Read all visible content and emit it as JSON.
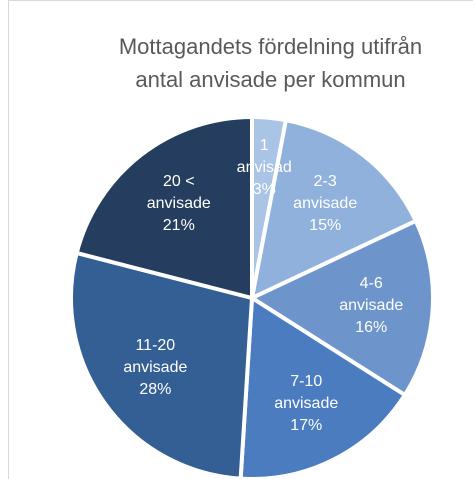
{
  "chart_data": {
    "type": "pie",
    "title": "Mottagandets fördelning utifrån antal anvisade per kommun",
    "categories": [
      "1 anvisad",
      "2-3 anvisade",
      "4-6 anvisade",
      "7-10 anvisade",
      "11-20 anvisade",
      "20 < anvisade"
    ],
    "values": [
      3,
      15,
      16,
      17,
      28,
      21
    ],
    "value_labels": [
      "3%",
      "15%",
      "16%",
      "17%",
      "28%",
      "21%"
    ],
    "colors": [
      "#a9c4e4",
      "#8fb1dc",
      "#6d95cb",
      "#4a7cbf",
      "#345f95",
      "#253e5f"
    ]
  }
}
